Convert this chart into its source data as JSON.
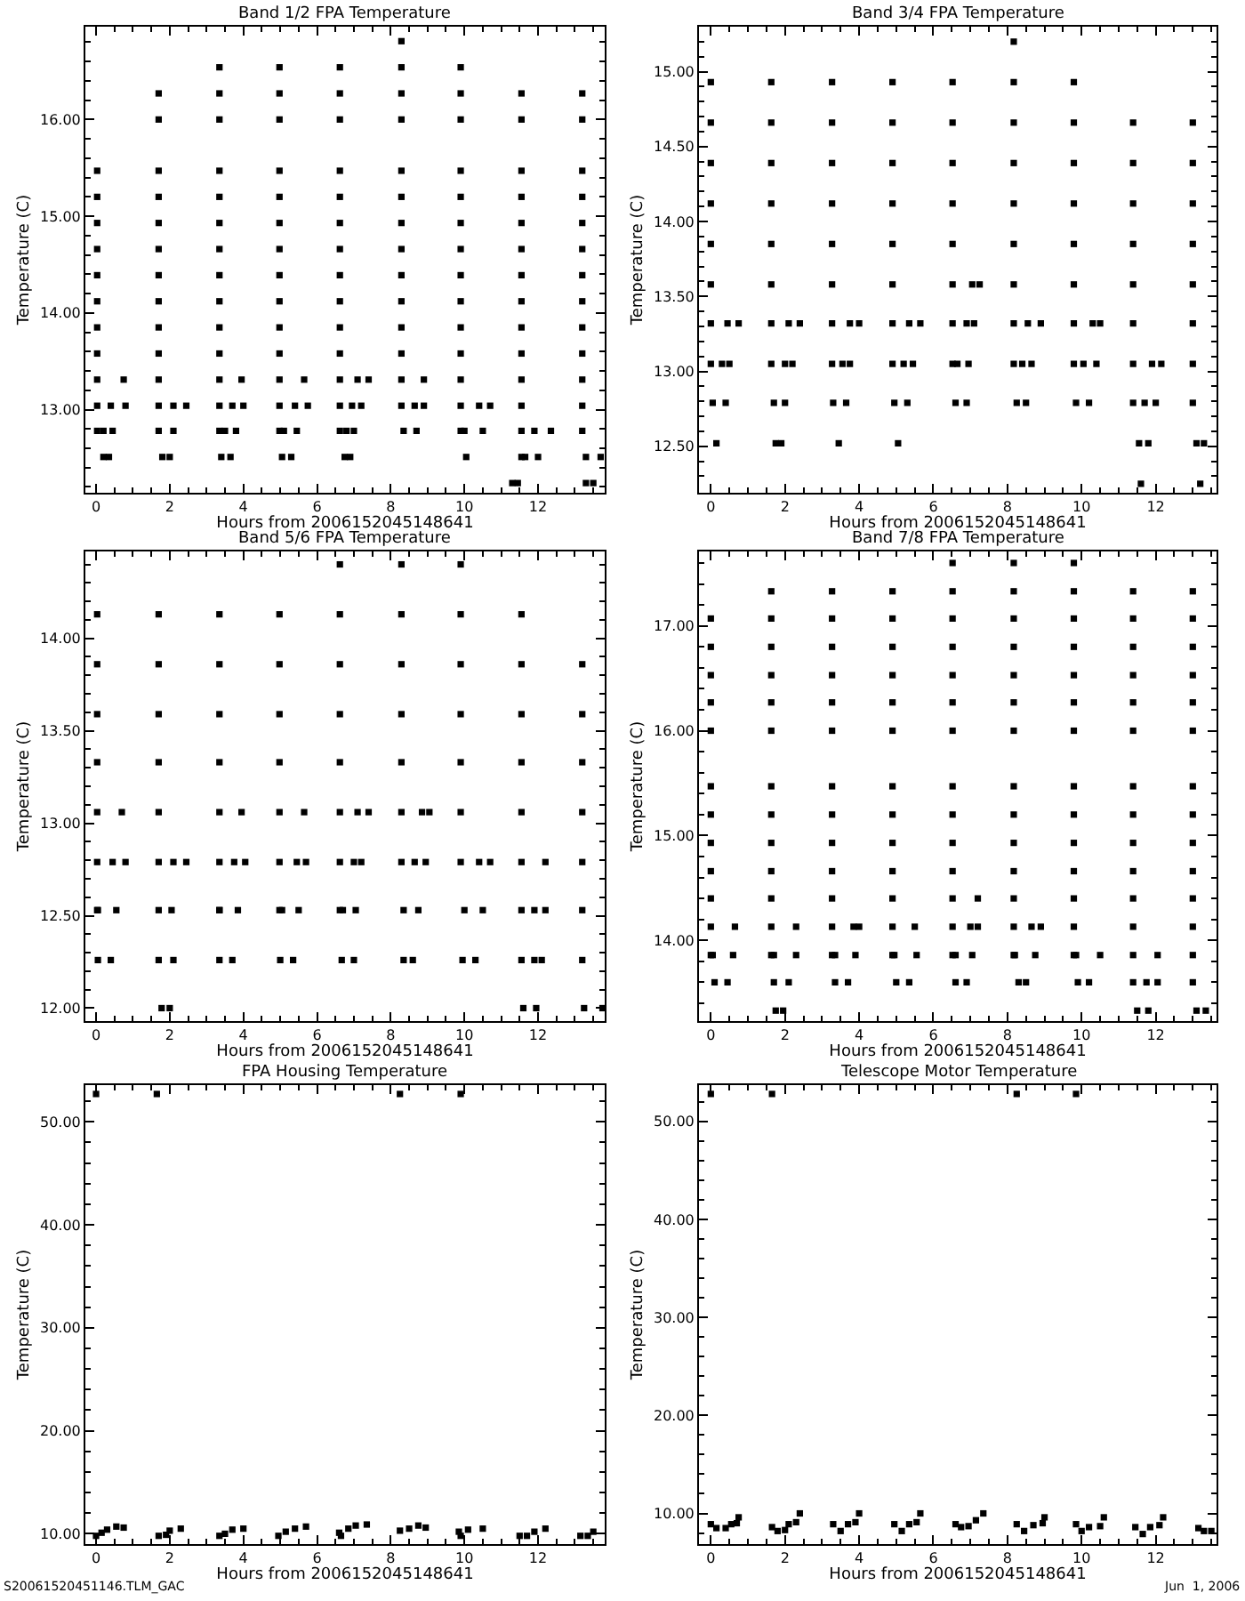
{
  "chart_data": [
    {
      "type": "scatter",
      "title": "Band 1/2 FPA Temperature",
      "xlabel": "Hours from 2006152045148641",
      "ylabel": "Temperature (C)",
      "color": "#000000",
      "marker": "square",
      "xlim": [
        -0.29,
        13.81
      ],
      "xticks": [
        0,
        2,
        4,
        6,
        8,
        10,
        12
      ],
      "ylim": [
        12.14,
        16.96
      ],
      "yticks": [
        {
          "value": 13,
          "label": "13.00"
        },
        {
          "value": 14,
          "label": "14.00"
        },
        {
          "value": 15,
          "label": "15.00"
        },
        {
          "value": 16,
          "label": "16.00"
        }
      ],
      "x": [
        0.03,
        0.03,
        0.03,
        0.03,
        0.03,
        0.03,
        0.03,
        0.03,
        0.03,
        0.03,
        0.03,
        1.7,
        1.7,
        1.7,
        1.7,
        1.7,
        1.7,
        1.7,
        1.7,
        1.7,
        1.7,
        1.7,
        1.7,
        1.7,
        3.35,
        3.35,
        3.35,
        3.35,
        3.35,
        3.35,
        3.35,
        3.35,
        3.35,
        3.35,
        3.35,
        3.35,
        3.35,
        3.35,
        4.98,
        4.98,
        4.98,
        4.98,
        4.98,
        4.98,
        4.98,
        4.98,
        4.98,
        4.98,
        4.98,
        4.98,
        4.98,
        4.98,
        6.62,
        6.62,
        6.62,
        6.62,
        6.62,
        6.62,
        6.62,
        6.62,
        6.62,
        6.62,
        6.62,
        6.62,
        6.62,
        6.62,
        8.29,
        8.29,
        8.29,
        8.29,
        8.29,
        8.29,
        8.29,
        8.29,
        8.29,
        8.29,
        8.29,
        8.29,
        8.29,
        8.29,
        9.9,
        9.9,
        9.9,
        9.9,
        9.9,
        9.9,
        9.9,
        9.9,
        9.9,
        9.9,
        9.9,
        9.9,
        9.9,
        9.9,
        11.55,
        11.55,
        11.55,
        11.55,
        11.55,
        11.55,
        11.55,
        11.55,
        11.55,
        11.55,
        11.55,
        11.55,
        11.55,
        11.55,
        13.2,
        13.2,
        13.2,
        13.2,
        13.2,
        13.2,
        13.2,
        13.2,
        13.2,
        13.2,
        13.2,
        13.2,
        13.2,
        0.2,
        0.35,
        1.8,
        2.0,
        3.4,
        3.65,
        5.05,
        5.3,
        6.75,
        6.9,
        10.05,
        11.65,
        12.0,
        13.3,
        13.7,
        11.3,
        11.45,
        13.3,
        13.5,
        0.2,
        0.45,
        2.1,
        3.5,
        3.8,
        5.1,
        5.45,
        6.8,
        7.0,
        8.35,
        8.7,
        10.0,
        10.5,
        11.9,
        12.35,
        0.4,
        0.8,
        2.1,
        2.45,
        3.7,
        4.0,
        5.4,
        5.75,
        6.95,
        7.2,
        8.65,
        8.9,
        10.4,
        10.7,
        0.75,
        3.95,
        5.65,
        7.1,
        7.4,
        8.9
      ],
      "values": [
        12.78,
        13.04,
        13.31,
        13.58,
        13.85,
        14.12,
        14.39,
        14.66,
        14.93,
        15.2,
        15.47,
        12.78,
        13.04,
        13.31,
        13.58,
        13.85,
        14.12,
        14.39,
        14.66,
        14.93,
        15.2,
        15.47,
        16.0,
        16.27,
        12.78,
        13.04,
        13.31,
        13.58,
        13.85,
        14.12,
        14.39,
        14.66,
        14.93,
        15.2,
        15.47,
        16.0,
        16.27,
        16.54,
        12.78,
        13.04,
        13.31,
        13.58,
        13.85,
        14.12,
        14.39,
        14.66,
        14.93,
        15.2,
        15.47,
        16.0,
        16.27,
        16.54,
        12.78,
        13.04,
        13.31,
        13.58,
        13.85,
        14.12,
        14.39,
        14.66,
        14.93,
        15.2,
        15.47,
        16.0,
        16.27,
        16.54,
        13.04,
        13.31,
        13.58,
        13.85,
        14.12,
        14.39,
        14.66,
        14.93,
        15.2,
        15.47,
        16.0,
        16.27,
        16.54,
        16.81,
        12.78,
        13.04,
        13.31,
        13.58,
        13.85,
        14.12,
        14.39,
        14.66,
        14.93,
        15.2,
        15.47,
        16.0,
        16.27,
        16.54,
        12.51,
        12.78,
        13.04,
        13.31,
        13.58,
        13.85,
        14.12,
        14.39,
        14.66,
        14.93,
        15.2,
        15.47,
        16.0,
        16.27,
        12.78,
        13.04,
        13.31,
        13.58,
        13.85,
        14.12,
        14.39,
        14.66,
        14.93,
        15.2,
        15.47,
        16.0,
        16.27,
        12.51,
        12.51,
        12.51,
        12.51,
        12.51,
        12.51,
        12.51,
        12.51,
        12.51,
        12.51,
        12.51,
        12.51,
        12.51,
        12.51,
        12.51,
        12.24,
        12.24,
        12.24,
        12.24,
        12.78,
        12.78,
        12.78,
        12.78,
        12.78,
        12.78,
        12.78,
        12.78,
        12.78,
        12.78,
        12.78,
        12.78,
        12.78,
        12.78,
        12.78,
        13.04,
        13.04,
        13.04,
        13.04,
        13.04,
        13.04,
        13.04,
        13.04,
        13.04,
        13.04,
        13.04,
        13.04,
        13.04,
        13.04,
        13.31,
        13.31,
        13.31,
        13.31,
        13.31,
        13.31
      ]
    },
    {
      "type": "scatter",
      "title": "Band 3/4 FPA Temperature",
      "xlabel": "Hours from 2006152045148641",
      "ylabel": "Temperature (C)",
      "color": "#000000",
      "marker": "square",
      "xlim": [
        -0.32,
        13.64
      ],
      "xticks": [
        0,
        2,
        4,
        6,
        8,
        10,
        12
      ],
      "ylim": [
        12.19,
        15.3
      ],
      "yticks": [
        {
          "value": 12.5,
          "label": "12.50"
        },
        {
          "value": 13,
          "label": "13.00"
        },
        {
          "value": 13.5,
          "label": "13.50"
        },
        {
          "value": 14,
          "label": "14.00"
        },
        {
          "value": 14.5,
          "label": "14.50"
        },
        {
          "value": 15,
          "label": "15.00"
        }
      ],
      "x": [
        0,
        0,
        0,
        0,
        0,
        0,
        0,
        0,
        1.63,
        1.63,
        1.63,
        1.63,
        1.63,
        1.63,
        1.63,
        1.63,
        3.27,
        3.27,
        3.27,
        3.27,
        3.27,
        3.27,
        3.27,
        3.27,
        4.9,
        4.9,
        4.9,
        4.9,
        4.9,
        4.9,
        4.9,
        4.9,
        6.52,
        6.52,
        6.52,
        6.52,
        6.52,
        6.52,
        6.52,
        6.52,
        8.17,
        8.17,
        8.17,
        8.17,
        8.17,
        8.17,
        8.17,
        8.17,
        8.17,
        9.79,
        9.79,
        9.79,
        9.79,
        9.79,
        9.79,
        9.79,
        9.79,
        11.39,
        11.39,
        11.39,
        11.39,
        11.39,
        11.39,
        11.39,
        11.39,
        13.0,
        13.0,
        13.0,
        13.0,
        13.0,
        13.0,
        13.0,
        13.0,
        0.15,
        1.75,
        1.9,
        3.45,
        5.05,
        11.55,
        11.8,
        13.1,
        13.3,
        11.6,
        13.2,
        0.05,
        0.4,
        1.7,
        2.0,
        3.3,
        3.65,
        4.95,
        5.3,
        6.6,
        6.9,
        8.25,
        8.5,
        9.85,
        10.2,
        11.7,
        12.0,
        0.3,
        0.5,
        2.0,
        2.2,
        3.55,
        3.75,
        5.2,
        5.45,
        6.65,
        6.95,
        8.4,
        8.65,
        10.05,
        10.4,
        11.9,
        12.15,
        0.45,
        0.75,
        2.1,
        2.4,
        3.75,
        4.0,
        5.35,
        5.65,
        6.9,
        7.1,
        8.55,
        8.9,
        10.3,
        10.5,
        7.05,
        7.25
      ],
      "values": [
        13.05,
        13.32,
        13.58,
        13.85,
        14.12,
        14.39,
        14.66,
        14.93,
        13.05,
        13.32,
        13.58,
        13.85,
        14.12,
        14.39,
        14.66,
        14.93,
        13.05,
        13.32,
        13.58,
        13.85,
        14.12,
        14.39,
        14.66,
        14.93,
        13.05,
        13.32,
        13.58,
        13.85,
        14.12,
        14.39,
        14.66,
        14.93,
        13.05,
        13.32,
        13.58,
        13.85,
        14.12,
        14.39,
        14.66,
        14.93,
        13.05,
        13.32,
        13.58,
        13.85,
        14.12,
        14.39,
        14.66,
        14.93,
        15.2,
        13.05,
        13.32,
        13.58,
        13.85,
        14.12,
        14.39,
        14.66,
        14.93,
        12.79,
        13.05,
        13.32,
        13.58,
        13.85,
        14.12,
        14.39,
        14.66,
        12.79,
        13.05,
        13.32,
        13.58,
        13.85,
        14.12,
        14.39,
        14.66,
        12.52,
        12.52,
        12.52,
        12.52,
        12.52,
        12.52,
        12.52,
        12.52,
        12.52,
        12.25,
        12.25,
        12.79,
        12.79,
        12.79,
        12.79,
        12.79,
        12.79,
        12.79,
        12.79,
        12.79,
        12.79,
        12.79,
        12.79,
        12.79,
        12.79,
        12.79,
        12.79,
        13.05,
        13.05,
        13.05,
        13.05,
        13.05,
        13.05,
        13.05,
        13.05,
        13.05,
        13.05,
        13.05,
        13.05,
        13.05,
        13.05,
        13.05,
        13.05,
        13.32,
        13.32,
        13.32,
        13.32,
        13.32,
        13.32,
        13.32,
        13.32,
        13.32,
        13.32,
        13.32,
        13.32,
        13.32,
        13.32,
        13.58,
        13.58
      ]
    },
    {
      "type": "scatter",
      "title": "Band 5/6 FPA Temperature",
      "xlabel": "Hours from 2006152045148641",
      "ylabel": "Temperature (C)",
      "color": "#000000",
      "marker": "square",
      "xlim": [
        -0.29,
        13.81
      ],
      "xticks": [
        0,
        2,
        4,
        6,
        8,
        10,
        12
      ],
      "ylim": [
        11.93,
        14.47
      ],
      "yticks": [
        {
          "value": 12,
          "label": "12.00"
        },
        {
          "value": 12.5,
          "label": "12.50"
        },
        {
          "value": 13,
          "label": "13.00"
        },
        {
          "value": 13.5,
          "label": "13.50"
        },
        {
          "value": 14,
          "label": "14.00"
        }
      ],
      "x": [
        0.03,
        0.03,
        0.03,
        0.03,
        0.03,
        0.03,
        0.03,
        1.7,
        1.7,
        1.7,
        1.7,
        1.7,
        1.7,
        1.7,
        3.35,
        3.35,
        3.35,
        3.35,
        3.35,
        3.35,
        3.35,
        4.98,
        4.98,
        4.98,
        4.98,
        4.98,
        4.98,
        4.98,
        6.62,
        6.62,
        6.62,
        6.62,
        6.62,
        6.62,
        6.62,
        6.62,
        8.29,
        8.29,
        8.29,
        8.29,
        8.29,
        8.29,
        8.29,
        9.9,
        9.9,
        9.9,
        9.9,
        9.9,
        9.9,
        9.9,
        11.55,
        11.55,
        11.55,
        11.55,
        11.55,
        11.55,
        11.55,
        11.55,
        13.2,
        13.2,
        13.2,
        13.2,
        13.2,
        13.2,
        13.2,
        1.78,
        2.0,
        11.6,
        11.95,
        13.25,
        13.75,
        0.05,
        0.4,
        1.7,
        2.1,
        3.35,
        3.7,
        5.0,
        5.35,
        6.67,
        7.0,
        8.35,
        8.6,
        9.95,
        10.3,
        11.9,
        12.1,
        0.05,
        0.55,
        2.05,
        3.35,
        3.85,
        5.05,
        5.5,
        6.7,
        7.05,
        8.35,
        8.75,
        10.0,
        10.5,
        11.9,
        12.2,
        0.45,
        0.8,
        2.1,
        2.45,
        3.75,
        4.05,
        5.45,
        5.7,
        7.0,
        7.2,
        8.65,
        8.95,
        10.4,
        10.7,
        12.2,
        0.7,
        3.95,
        5.65,
        7.1,
        7.4,
        8.85,
        9.05
      ],
      "values": [
        12.53,
        12.79,
        13.06,
        13.33,
        13.59,
        13.86,
        14.13,
        12.53,
        12.79,
        13.06,
        13.33,
        13.59,
        13.86,
        14.13,
        12.53,
        12.79,
        13.06,
        13.33,
        13.59,
        13.86,
        14.13,
        12.53,
        12.79,
        13.06,
        13.33,
        13.59,
        13.86,
        14.13,
        12.53,
        12.79,
        13.06,
        13.33,
        13.59,
        13.86,
        14.13,
        14.4,
        12.79,
        13.06,
        13.33,
        13.59,
        13.86,
        14.13,
        14.4,
        12.79,
        13.06,
        13.33,
        13.59,
        13.86,
        14.13,
        14.4,
        12.26,
        12.53,
        12.79,
        13.06,
        13.33,
        13.59,
        13.86,
        14.13,
        12.26,
        12.53,
        12.79,
        13.06,
        13.33,
        13.59,
        13.86,
        12.0,
        12.0,
        12.0,
        12.0,
        12.0,
        12.0,
        12.26,
        12.26,
        12.26,
        12.26,
        12.26,
        12.26,
        12.26,
        12.26,
        12.26,
        12.26,
        12.26,
        12.26,
        12.26,
        12.26,
        12.26,
        12.26,
        12.53,
        12.53,
        12.53,
        12.53,
        12.53,
        12.53,
        12.53,
        12.53,
        12.53,
        12.53,
        12.53,
        12.53,
        12.53,
        12.53,
        12.53,
        12.79,
        12.79,
        12.79,
        12.79,
        12.79,
        12.79,
        12.79,
        12.79,
        12.79,
        12.79,
        12.79,
        12.79,
        12.79,
        12.79,
        12.79,
        13.06,
        13.06,
        13.06,
        13.06,
        13.06,
        13.06,
        13.06
      ]
    },
    {
      "type": "scatter",
      "title": "Band 7/8 FPA Temperature",
      "xlabel": "Hours from 2006152045148641",
      "ylabel": "Temperature (C)",
      "color": "#000000",
      "marker": "square",
      "xlim": [
        -0.32,
        13.64
      ],
      "xticks": [
        0,
        2,
        4,
        6,
        8,
        10,
        12
      ],
      "ylim": [
        13.23,
        17.71
      ],
      "yticks": [
        {
          "value": 14,
          "label": "14.00"
        },
        {
          "value": 15,
          "label": "15.00"
        },
        {
          "value": 16,
          "label": "16.00"
        },
        {
          "value": 17,
          "label": "17.00"
        }
      ],
      "x": [
        0,
        0,
        0,
        0,
        0,
        0,
        0,
        0,
        0,
        0,
        0,
        0,
        1.63,
        1.63,
        1.63,
        1.63,
        1.63,
        1.63,
        1.63,
        1.63,
        1.63,
        1.63,
        1.63,
        1.63,
        1.63,
        3.27,
        3.27,
        3.27,
        3.27,
        3.27,
        3.27,
        3.27,
        3.27,
        3.27,
        3.27,
        3.27,
        3.27,
        3.27,
        4.9,
        4.9,
        4.9,
        4.9,
        4.9,
        4.9,
        4.9,
        4.9,
        4.9,
        4.9,
        4.9,
        4.9,
        4.9,
        6.52,
        6.52,
        6.52,
        6.52,
        6.52,
        6.52,
        6.52,
        6.52,
        6.52,
        6.52,
        6.52,
        6.52,
        6.52,
        6.52,
        8.17,
        8.17,
        8.17,
        8.17,
        8.17,
        8.17,
        8.17,
        8.17,
        8.17,
        8.17,
        8.17,
        8.17,
        8.17,
        8.17,
        9.79,
        9.79,
        9.79,
        9.79,
        9.79,
        9.79,
        9.79,
        9.79,
        9.79,
        9.79,
        9.79,
        9.79,
        9.79,
        9.79,
        11.39,
        11.39,
        11.39,
        11.39,
        11.39,
        11.39,
        11.39,
        11.39,
        11.39,
        11.39,
        11.39,
        11.39,
        11.39,
        11.39,
        13.0,
        13.0,
        13.0,
        13.0,
        13.0,
        13.0,
        13.0,
        13.0,
        13.0,
        13.0,
        13.0,
        13.0,
        13.0,
        13.0,
        1.75,
        1.95,
        11.5,
        11.8,
        13.1,
        13.35,
        0.1,
        0.45,
        1.7,
        2.1,
        3.35,
        3.7,
        5.0,
        5.35,
        6.6,
        6.9,
        8.3,
        8.5,
        9.9,
        10.2,
        11.75,
        12.05,
        0.05,
        0.6,
        1.7,
        2.3,
        3.35,
        3.9,
        4.95,
        5.55,
        6.6,
        7.05,
        8.2,
        8.75,
        9.85,
        10.5,
        12.05,
        0.65,
        2.3,
        3.85,
        4.0,
        5.5,
        7.0,
        7.2,
        8.65,
        8.9,
        7.2
      ],
      "values": [
        13.86,
        14.13,
        14.4,
        14.66,
        14.93,
        15.2,
        15.47,
        16.0,
        16.27,
        16.53,
        16.8,
        17.07,
        13.86,
        14.13,
        14.4,
        14.66,
        14.93,
        15.2,
        15.47,
        16.0,
        16.27,
        16.53,
        16.8,
        17.07,
        17.33,
        13.86,
        14.13,
        14.4,
        14.66,
        14.93,
        15.2,
        15.47,
        16.0,
        16.27,
        16.53,
        16.8,
        17.07,
        17.33,
        13.86,
        14.13,
        14.4,
        14.66,
        14.93,
        15.2,
        15.47,
        16.0,
        16.27,
        16.53,
        16.8,
        17.07,
        17.33,
        13.86,
        14.13,
        14.4,
        14.66,
        14.93,
        15.2,
        15.47,
        16.0,
        16.27,
        16.53,
        16.8,
        17.07,
        17.33,
        17.6,
        13.86,
        14.13,
        14.4,
        14.66,
        14.93,
        15.2,
        15.47,
        16.0,
        16.27,
        16.53,
        16.8,
        17.07,
        17.33,
        17.6,
        13.86,
        14.13,
        14.4,
        14.66,
        14.93,
        15.2,
        15.47,
        16.0,
        16.27,
        16.53,
        16.8,
        17.07,
        17.33,
        17.6,
        13.6,
        13.86,
        14.13,
        14.4,
        14.66,
        14.93,
        15.2,
        15.47,
        16.0,
        16.27,
        16.53,
        16.8,
        17.07,
        17.33,
        13.6,
        13.86,
        14.13,
        14.4,
        14.66,
        14.93,
        15.2,
        15.47,
        16.0,
        16.27,
        16.53,
        16.8,
        17.07,
        17.33,
        13.33,
        13.33,
        13.33,
        13.33,
        13.33,
        13.33,
        13.6,
        13.6,
        13.6,
        13.6,
        13.6,
        13.6,
        13.6,
        13.6,
        13.6,
        13.6,
        13.6,
        13.6,
        13.6,
        13.6,
        13.6,
        13.6,
        13.86,
        13.86,
        13.86,
        13.86,
        13.86,
        13.86,
        13.86,
        13.86,
        13.86,
        13.86,
        13.86,
        13.86,
        13.86,
        13.86,
        13.86,
        14.13,
        14.13,
        14.13,
        14.13,
        14.13,
        14.13,
        14.13,
        14.13,
        14.13,
        14.4
      ]
    },
    {
      "type": "scatter",
      "title": "FPA Housing Temperature",
      "xlabel": "Hours from 2006152045148641",
      "ylabel": "Temperature (C)",
      "color": "#000000",
      "marker": "square",
      "annotations": [
        "S20061520451146.TLM_GAC"
      ],
      "xlim": [
        -0.29,
        13.81
      ],
      "xticks": [
        0,
        2,
        4,
        6,
        8,
        10,
        12
      ],
      "ylim": [
        9.0,
        53.56
      ],
      "yticks": [
        {
          "value": 10,
          "label": "10.00"
        },
        {
          "value": 20,
          "label": "20.00"
        },
        {
          "value": 30,
          "label": "30.00"
        },
        {
          "value": 40,
          "label": "40.00"
        },
        {
          "value": 50,
          "label": "50.00"
        }
      ],
      "x": [
        0,
        1.65,
        8.25,
        9.9,
        0.0,
        0.15,
        0.3,
        0.55,
        0.75,
        1.7,
        1.9,
        2.0,
        2.3,
        3.35,
        3.5,
        3.7,
        4.0,
        4.95,
        5.15,
        5.4,
        5.7,
        6.6,
        6.65,
        6.85,
        7.05,
        7.35,
        8.25,
        8.5,
        8.75,
        8.95,
        9.85,
        9.9,
        10.1,
        10.5,
        11.5,
        11.7,
        11.9,
        12.2,
        13.15,
        13.35,
        13.5
      ],
      "values": [
        52.7,
        52.7,
        52.7,
        52.7,
        9.8,
        10.1,
        10.4,
        10.7,
        10.6,
        9.8,
        9.9,
        10.3,
        10.5,
        9.8,
        10.0,
        10.4,
        10.5,
        9.8,
        10.2,
        10.5,
        10.7,
        10.1,
        9.8,
        10.5,
        10.8,
        10.9,
        10.3,
        10.5,
        10.8,
        10.6,
        10.2,
        9.8,
        10.4,
        10.5,
        9.8,
        9.8,
        10.2,
        10.5,
        9.8,
        9.8,
        10.2
      ]
    },
    {
      "type": "scatter",
      "title": "Telescope Motor Temperature",
      "xlabel": "Hours from 2006152045148641",
      "ylabel": "Temperature (C)",
      "color": "#000000",
      "marker": "square",
      "annotations": [
        "Jun  1, 2006"
      ],
      "xlim": [
        -0.32,
        13.64
      ],
      "xticks": [
        0,
        2,
        4,
        6,
        8,
        10,
        12
      ],
      "ylim": [
        6.87,
        53.7
      ],
      "yticks": [
        {
          "value": 10,
          "label": "10.00"
        },
        {
          "value": 20,
          "label": "20.00"
        },
        {
          "value": 30,
          "label": "30.00"
        },
        {
          "value": 40,
          "label": "40.00"
        },
        {
          "value": 50,
          "label": "50.00"
        }
      ],
      "x": [
        0,
        1.65,
        8.25,
        9.85,
        0,
        0.15,
        0.4,
        0.55,
        0.7,
        0.75,
        1.65,
        1.8,
        2.0,
        2.1,
        2.3,
        2.4,
        3.3,
        3.5,
        3.7,
        3.9,
        4.0,
        4.95,
        5.15,
        5.35,
        5.55,
        5.65,
        6.6,
        6.75,
        6.95,
        7.15,
        7.35,
        8.25,
        8.45,
        8.7,
        8.95,
        9.0,
        9.85,
        10.0,
        10.2,
        10.5,
        10.6,
        11.45,
        11.65,
        11.85,
        12.1,
        12.2,
        13.15,
        13.3,
        13.5
      ],
      "values": [
        52.8,
        52.8,
        52.8,
        52.8,
        8.9,
        8.5,
        8.5,
        8.9,
        9.0,
        9.6,
        8.6,
        8.2,
        8.3,
        8.9,
        9.1,
        10.0,
        8.9,
        8.2,
        8.9,
        9.1,
        10.0,
        8.9,
        8.2,
        8.9,
        9.1,
        10.0,
        8.9,
        8.6,
        8.7,
        9.3,
        10.0,
        8.9,
        8.2,
        8.8,
        9.0,
        9.6,
        8.9,
        8.2,
        8.6,
        8.7,
        9.6,
        8.6,
        7.9,
        8.6,
        8.8,
        9.6,
        8.5,
        8.2,
        8.2
      ]
    }
  ]
}
